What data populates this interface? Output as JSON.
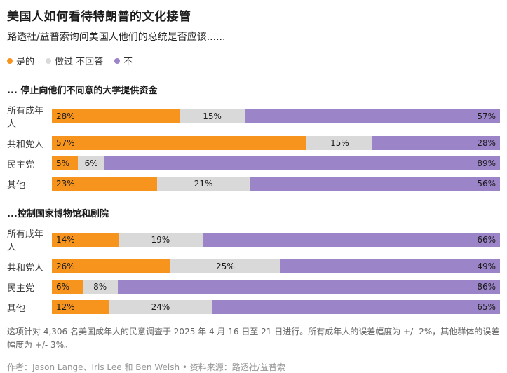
{
  "header": {
    "title": "美国人如何看待特朗普的文化接管",
    "subtitle": "路透社/益普索询问美国人他们的总统是否应该......"
  },
  "legend": [
    {
      "key": "yes",
      "label": "是的",
      "color": "#f7941e"
    },
    {
      "key": "neutral",
      "label": "做过 不回答",
      "color": "#d9d9d9"
    },
    {
      "key": "no",
      "label": "不",
      "color": "#9b84c7"
    }
  ],
  "chart_data": [
    {
      "type": "bar",
      "title": "... 停止向他们不同意的大学提供资金",
      "stacked": true,
      "unit": "%",
      "categories": [
        "所有成年人",
        "共和党人",
        "民主党",
        "其他"
      ],
      "series": [
        {
          "name": "是的",
          "color": "#f7941e",
          "values": [
            28,
            57,
            5,
            23
          ]
        },
        {
          "name": "做过 不回答",
          "color": "#d9d9d9",
          "values": [
            15,
            15,
            6,
            21
          ]
        },
        {
          "name": "不",
          "color": "#9b84c7",
          "values": [
            57,
            28,
            89,
            56
          ]
        }
      ]
    },
    {
      "type": "bar",
      "title": "...控制国家博物馆和剧院",
      "stacked": true,
      "unit": "%",
      "categories": [
        "所有成年人",
        "共和党人",
        "民主党",
        "其他"
      ],
      "series": [
        {
          "name": "是的",
          "color": "#f7941e",
          "values": [
            14,
            26,
            6,
            12
          ]
        },
        {
          "name": "做过 不回答",
          "color": "#d9d9d9",
          "values": [
            19,
            25,
            8,
            24
          ]
        },
        {
          "name": "不",
          "color": "#9b84c7",
          "values": [
            66,
            49,
            86,
            65
          ]
        }
      ]
    }
  ],
  "footnote": "这项针对 4,306 名美国成年人的民意调查于 2025 年 4 月 16 日至 21 日进行。所有成年人的误差幅度为 +/- 2%，其他群体的误差幅度为 +/- 3%。",
  "byline": "作者：Jason Lange、Iris Lee 和 Ben Welsh • 资料来源：路透社/益普索"
}
